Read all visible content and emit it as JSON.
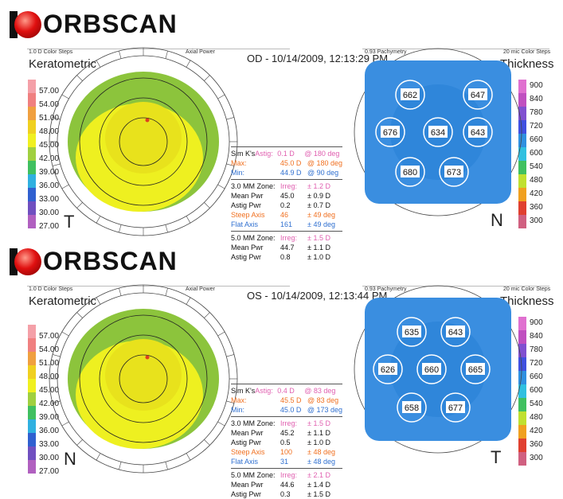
{
  "reports": [
    {
      "logo": "ORBSCAN",
      "title": "OD - 10/14/2009, 12:13:29 PM",
      "left": {
        "steps": "1.0 D Color Steps",
        "name": "Keratometric",
        "type": "Axial Power",
        "corner": "T"
      },
      "right": {
        "steps": "0.93 Pachymetry",
        "color_steps": "20 mic Color Steps",
        "name": "Thickness",
        "corner": "N"
      },
      "scale_left": [
        "57.00",
        "54.00",
        "51.00",
        "48.00",
        "45.00",
        "42.00",
        "39.00",
        "36.00",
        "33.00",
        "30.00",
        "27.00"
      ],
      "scale_right": [
        "900",
        "840",
        "780",
        "720",
        "660",
        "600",
        "540",
        "480",
        "420",
        "360",
        "300"
      ],
      "pachy": [
        "662",
        "647",
        "676",
        "634",
        "643",
        "680",
        "673"
      ],
      "stats": {
        "simk": [
          "Sim K's",
          "Astig:",
          "0.1 D",
          "@ 180 deg"
        ],
        "max": [
          "Max:",
          "45.0 D",
          "@ 180 deg"
        ],
        "min": [
          "Min:",
          "44.9 D",
          "@ 90 deg"
        ],
        "z3": [
          [
            "3.0 MM Zone:",
            "Irreg:",
            "± 1.2 D"
          ],
          [
            "Mean Pwr",
            "45.0",
            "± 0.9 D"
          ],
          [
            "Astig Pwr",
            "0.2",
            "± 0.7 D"
          ],
          [
            "Steep Axis",
            "46",
            "± 49 deg"
          ],
          [
            "Flat Axis",
            "161",
            "± 49 deg"
          ]
        ],
        "z5": [
          [
            "5.0 MM Zone:",
            "Irreg:",
            "± 1.5 D"
          ],
          [
            "Mean Pwr",
            "44.7",
            "± 1.1 D"
          ],
          [
            "Astig Pwr",
            "0.8",
            "± 1.0 D"
          ]
        ]
      }
    },
    {
      "logo": "ORBSCAN",
      "title": "OS - 10/14/2009, 12:13:44 PM",
      "left": {
        "steps": "1.0 D Color Steps",
        "name": "Keratometric",
        "type": "Axial Power",
        "corner": "N"
      },
      "right": {
        "steps": "0.93 Pachymetry",
        "color_steps": "20 mic Color Steps",
        "name": "Thickness",
        "corner": "T"
      },
      "scale_left": [
        "57.00",
        "54.00",
        "51.00",
        "48.00",
        "45.00",
        "42.00",
        "39.00",
        "36.00",
        "33.00",
        "30.00",
        "27.00"
      ],
      "scale_right": [
        "900",
        "840",
        "780",
        "720",
        "660",
        "600",
        "540",
        "480",
        "420",
        "360",
        "300"
      ],
      "pachy": [
        "635",
        "643",
        "626",
        "660",
        "665",
        "658",
        "677"
      ],
      "stats": {
        "simk": [
          "Sim K's",
          "Astig:",
          "0.4 D",
          "@ 83 deg"
        ],
        "max": [
          "Max:",
          "45.5 D",
          "@ 83 deg"
        ],
        "min": [
          "Min:",
          "45.0 D",
          "@ 173 deg"
        ],
        "z3": [
          [
            "3.0 MM Zone:",
            "Irreg:",
            "± 1.5 D"
          ],
          [
            "Mean Pwr",
            "45.2",
            "± 1.1 D"
          ],
          [
            "Astig Pwr",
            "0.5",
            "± 1.0 D"
          ],
          [
            "Steep Axis",
            "100",
            "± 48 deg"
          ],
          [
            "Flat Axis",
            "31",
            "± 48 deg"
          ]
        ],
        "z5": [
          [
            "5.0 MM Zone:",
            "Irreg:",
            "± 2.1 D"
          ],
          [
            "Mean Pwr",
            "44.6",
            "± 1.4 D"
          ],
          [
            "Astig Pwr",
            "0.3",
            "± 1.5 D"
          ]
        ]
      }
    }
  ],
  "colors": {
    "left": [
      "#f4a0a8",
      "#f08080",
      "#f0a040",
      "#f0d020",
      "#f0f020",
      "#a0d040",
      "#40c060",
      "#30b0e0",
      "#3060d0",
      "#7050c0",
      "#b060c0"
    ],
    "right": [
      "#e070d0",
      "#c050c0",
      "#8050d0",
      "#4050e0",
      "#3090e0",
      "#30c0e0",
      "#40c060",
      "#c0e030",
      "#f0a020",
      "#e04030",
      "#d06080"
    ]
  }
}
